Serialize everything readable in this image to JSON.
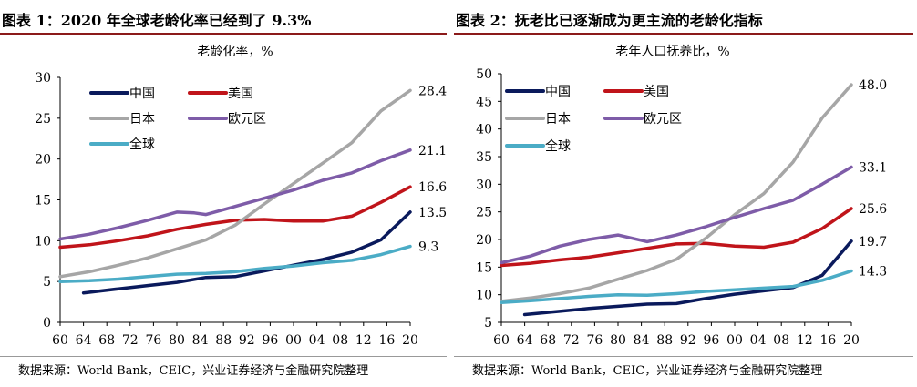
{
  "charts": [
    {
      "figure_title": "图表 1：2020 年全球老龄化率已经到了 9.3%",
      "source": "数据来源：World Bank，CEIC，兴业证券经济与金融研究院整理"
    },
    {
      "figure_title": "图表 2：抚老比已逐渐成为更主流的老龄化指标",
      "source": "数据来源：World Bank，CEIC，兴业证券经济与金融研究院整理"
    }
  ],
  "colors": {
    "china": "#0a1a5c",
    "usa": "#c0141a",
    "japan": "#a6a6a6",
    "euro": "#7e5ca8",
    "global": "#4bacc6",
    "title_rule": "#8b1a1a"
  },
  "chart_data": [
    {
      "type": "line",
      "title": "老龄化率，%",
      "ylim": [
        0,
        30
      ],
      "yticks": [
        "0",
        "5",
        "10",
        "15",
        "20",
        "25",
        "30"
      ],
      "xlim": [
        1960,
        2020
      ],
      "xticks": [
        "60",
        "64",
        "68",
        "72",
        "76",
        "80",
        "84",
        "88",
        "92",
        "96",
        "00",
        "04",
        "08",
        "12",
        "16",
        "20"
      ],
      "grid": false,
      "legend": "top-left",
      "series": [
        {
          "name": "中国",
          "color_key": "china",
          "x": [
            1964,
            1970,
            1975,
            1980,
            1985,
            1990,
            1995,
            2000,
            2005,
            2010,
            2015,
            2020
          ],
          "values": [
            3.6,
            4.1,
            4.5,
            4.9,
            5.5,
            5.6,
            6.3,
            7.0,
            7.7,
            8.6,
            10.1,
            13.5
          ],
          "end_label": "13.5"
        },
        {
          "name": "美国",
          "color_key": "usa",
          "x": [
            1960,
            1965,
            1970,
            1975,
            1980,
            1985,
            1990,
            1995,
            2000,
            2005,
            2010,
            2015,
            2020
          ],
          "values": [
            9.2,
            9.5,
            10.0,
            10.6,
            11.4,
            12.0,
            12.5,
            12.6,
            12.4,
            12.4,
            13.0,
            14.7,
            16.6
          ],
          "end_label": "16.6"
        },
        {
          "name": "日本",
          "color_key": "japan",
          "x": [
            1960,
            1965,
            1970,
            1975,
            1980,
            1985,
            1990,
            1995,
            2000,
            2005,
            2010,
            2015,
            2020
          ],
          "values": [
            5.6,
            6.2,
            7.0,
            7.9,
            9.0,
            10.1,
            11.9,
            14.5,
            17.0,
            19.5,
            22.0,
            25.9,
            28.4
          ],
          "end_label": "28.4"
        },
        {
          "name": "欧元区",
          "color_key": "euro",
          "x": [
            1960,
            1965,
            1970,
            1975,
            1980,
            1983,
            1985,
            1990,
            1995,
            2000,
            2005,
            2010,
            2015,
            2020
          ],
          "values": [
            10.2,
            10.8,
            11.6,
            12.5,
            13.5,
            13.4,
            13.2,
            14.2,
            15.2,
            16.2,
            17.4,
            18.3,
            19.8,
            21.1
          ],
          "end_label": "21.1"
        },
        {
          "name": "全球",
          "color_key": "global",
          "x": [
            1960,
            1965,
            1970,
            1975,
            1980,
            1985,
            1990,
            1995,
            2000,
            2005,
            2010,
            2015,
            2020
          ],
          "values": [
            5.0,
            5.1,
            5.3,
            5.6,
            5.9,
            6.0,
            6.2,
            6.6,
            6.9,
            7.3,
            7.6,
            8.3,
            9.3
          ],
          "end_label": "9.3"
        }
      ]
    },
    {
      "type": "line",
      "title": "老年人口抚养比，%",
      "ylim": [
        5,
        50
      ],
      "yticks": [
        "5",
        "10",
        "15",
        "20",
        "25",
        "30",
        "35",
        "40",
        "45",
        "50"
      ],
      "xlim": [
        1960,
        2020
      ],
      "xticks": [
        "60",
        "64",
        "68",
        "72",
        "76",
        "80",
        "84",
        "88",
        "92",
        "96",
        "00",
        "04",
        "08",
        "12",
        "16",
        "20"
      ],
      "grid": false,
      "legend": "top-left",
      "series": [
        {
          "name": "中国",
          "color_key": "china",
          "x": [
            1964,
            1970,
            1975,
            1980,
            1985,
            1990,
            1995,
            2000,
            2005,
            2010,
            2015,
            2020
          ],
          "values": [
            6.4,
            7.0,
            7.5,
            7.9,
            8.3,
            8.4,
            9.3,
            10.1,
            10.7,
            11.3,
            13.5,
            19.7
          ],
          "end_label": "19.7"
        },
        {
          "name": "美国",
          "color_key": "usa",
          "x": [
            1960,
            1965,
            1970,
            1975,
            1980,
            1985,
            1990,
            1995,
            2000,
            2005,
            2010,
            2015,
            2020
          ],
          "values": [
            15.3,
            15.7,
            16.3,
            16.8,
            17.6,
            18.4,
            19.2,
            19.3,
            18.8,
            18.6,
            19.5,
            22.0,
            25.6
          ],
          "end_label": "25.6"
        },
        {
          "name": "日本",
          "color_key": "japan",
          "x": [
            1960,
            1965,
            1970,
            1975,
            1980,
            1985,
            1990,
            1995,
            2000,
            2005,
            2010,
            2015,
            2020
          ],
          "values": [
            8.8,
            9.4,
            10.2,
            11.2,
            12.8,
            14.4,
            16.4,
            20.2,
            24.5,
            28.3,
            34.0,
            42.0,
            48.0
          ],
          "end_label": "48.0"
        },
        {
          "name": "欧元区",
          "color_key": "euro",
          "x": [
            1960,
            1965,
            1970,
            1975,
            1980,
            1985,
            1990,
            1995,
            2000,
            2005,
            2010,
            2015,
            2020
          ],
          "values": [
            15.8,
            17.0,
            18.8,
            20.0,
            20.8,
            19.6,
            20.8,
            22.3,
            24.0,
            25.6,
            27.1,
            30.0,
            33.1
          ],
          "end_label": "33.1"
        },
        {
          "name": "全球",
          "color_key": "global",
          "x": [
            1960,
            1965,
            1970,
            1975,
            1980,
            1985,
            1990,
            1995,
            2000,
            2005,
            2010,
            2015,
            2020
          ],
          "values": [
            8.6,
            8.9,
            9.3,
            9.7,
            10.0,
            9.9,
            10.2,
            10.6,
            10.9,
            11.2,
            11.5,
            12.6,
            14.3
          ],
          "end_label": "14.3"
        }
      ]
    }
  ]
}
